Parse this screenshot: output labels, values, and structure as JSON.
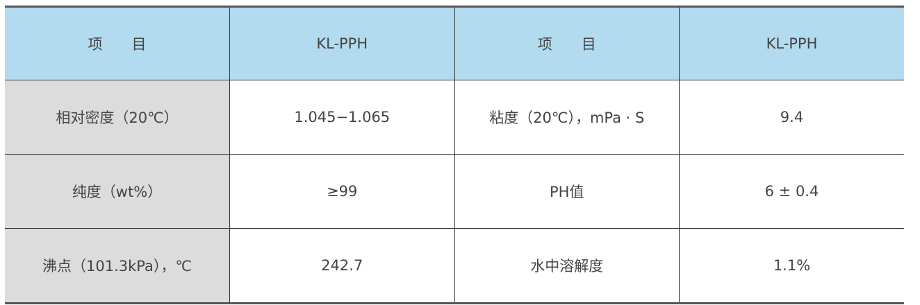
{
  "header": [
    "项　　目",
    "KL-PPH",
    "项　　目",
    "KL-PPH"
  ],
  "rows": [
    [
      "相对密度（20℃）",
      "1.045−1.065",
      "粘度（20℃），mPa · S",
      "9.4"
    ],
    [
      "纯度（wt%）",
      "≥99",
      "PH值",
      "6 ± 0.4"
    ],
    [
      "沸点（101.3kPa），℃",
      "242.7",
      "水中溶解度",
      "1.1%"
    ]
  ],
  "colors": {
    "header_bg": "#b3dbef",
    "label_bg": "#dcdcdc"
  }
}
